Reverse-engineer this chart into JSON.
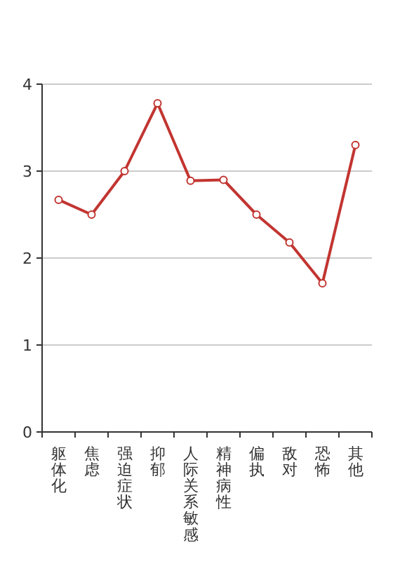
{
  "chart_data": {
    "type": "line",
    "categories": [
      "躯体化",
      "焦虑",
      "强迫症状",
      "抑郁",
      "人际关系敏感",
      "精神病性",
      "偏执",
      "敌对",
      "恐怖",
      "其他"
    ],
    "series": [
      {
        "color": "#c23531",
        "values": [
          2.67,
          2.5,
          3.0,
          3.78,
          2.89,
          2.9,
          2.5,
          2.18,
          1.71,
          3.3
        ]
      }
    ],
    "ylim": [
      0,
      4
    ],
    "yticks": [
      0,
      1,
      2,
      3,
      4
    ],
    "grid": "y",
    "marker": "circle",
    "line_style": "solid"
  }
}
